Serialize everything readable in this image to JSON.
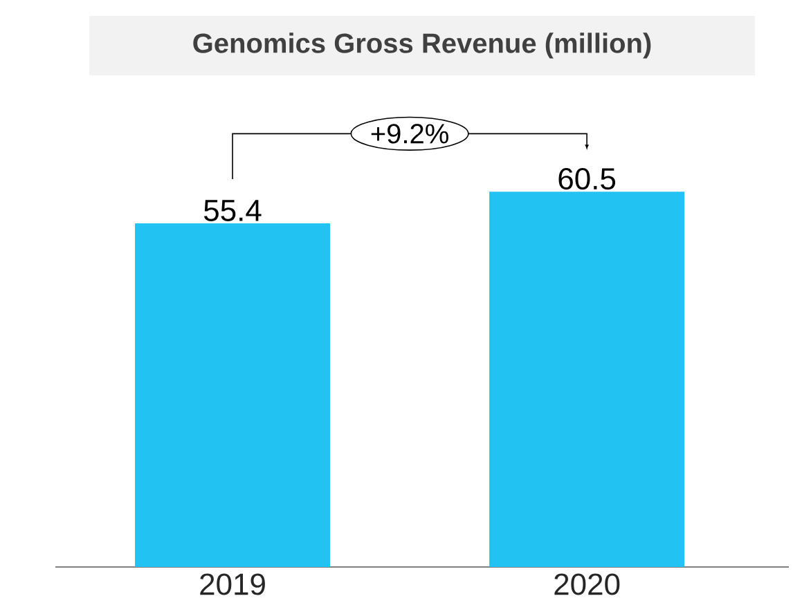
{
  "chart_data": {
    "type": "bar",
    "title": "Genomics Gross Revenue (million)",
    "categories": [
      "2019",
      "2020"
    ],
    "values": [
      55.4,
      60.5
    ],
    "color": "#22c3f3",
    "data_labels": true,
    "annotations": [
      "+9.2%"
    ]
  }
}
